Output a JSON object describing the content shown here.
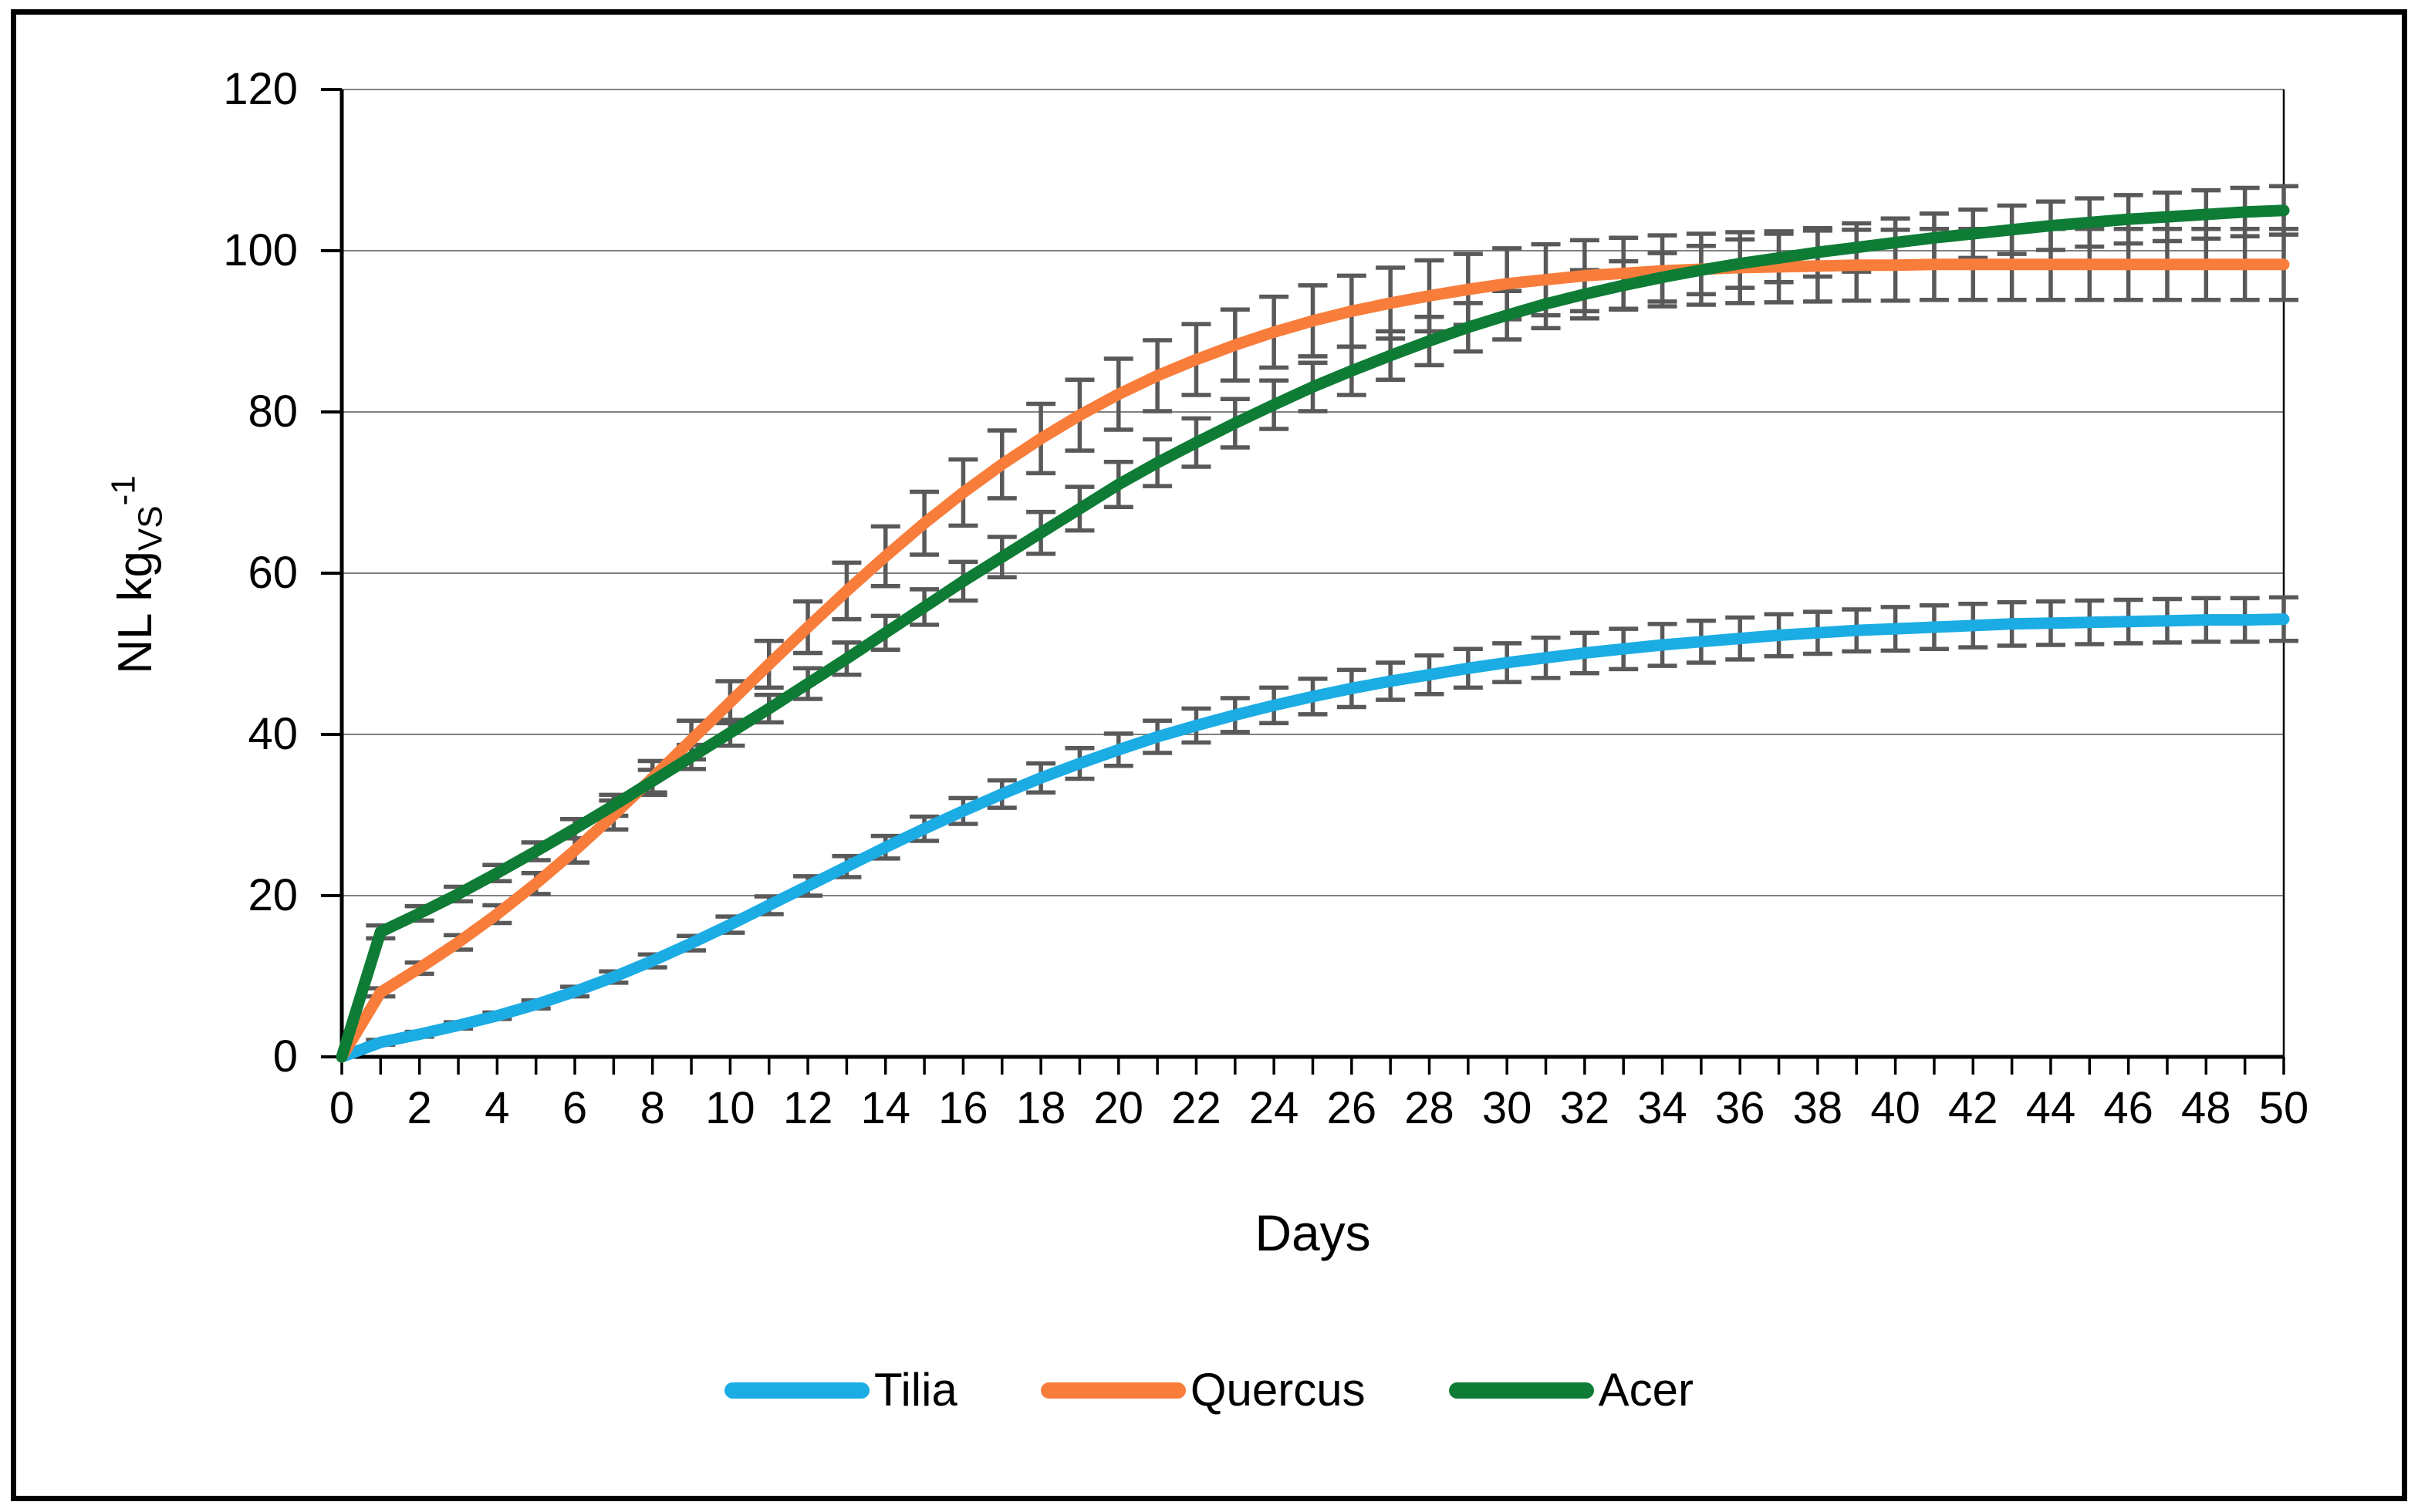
{
  "figure": {
    "background_color": "#ffffff",
    "frame_color": "#000000",
    "gridline_color": "#808080",
    "axis_color": "#000000"
  },
  "chart_data": {
    "type": "line",
    "title": "",
    "xlabel": "Days",
    "ylabel": "NL kgVS-1",
    "ylabel_parts": {
      "main": "NL kg",
      "subscript": "VS",
      "superscript": "-1"
    },
    "xlim": [
      0,
      50
    ],
    "ylim": [
      0,
      120
    ],
    "x_ticks": [
      0,
      2,
      4,
      6,
      8,
      10,
      12,
      14,
      16,
      18,
      20,
      22,
      24,
      26,
      28,
      30,
      32,
      34,
      36,
      38,
      40,
      42,
      44,
      46,
      48,
      50
    ],
    "y_ticks": [
      0,
      20,
      40,
      60,
      80,
      100,
      120
    ],
    "grid": "horizontal",
    "legend_position": "bottom",
    "error_bar_color": "#595959",
    "x": [
      0,
      1,
      2,
      3,
      4,
      5,
      6,
      7,
      8,
      9,
      10,
      11,
      12,
      13,
      14,
      15,
      16,
      17,
      18,
      19,
      20,
      21,
      22,
      23,
      24,
      25,
      26,
      27,
      28,
      29,
      30,
      31,
      32,
      33,
      34,
      35,
      36,
      37,
      38,
      39,
      40,
      41,
      42,
      43,
      44,
      45,
      46,
      47,
      48,
      49,
      50
    ],
    "series": [
      {
        "name": "Tilia",
        "color": "#1BACE4",
        "values": [
          0,
          1.8,
          2.8,
          3.9,
          5.1,
          6.5,
          8.1,
          9.9,
          11.9,
          14.1,
          16.4,
          18.8,
          21.2,
          23.6,
          26.0,
          28.3,
          30.5,
          32.6,
          34.6,
          36.4,
          38.1,
          39.7,
          41.1,
          42.4,
          43.6,
          44.7,
          45.7,
          46.6,
          47.4,
          48.2,
          48.9,
          49.5,
          50.1,
          50.6,
          51.1,
          51.5,
          51.9,
          52.3,
          52.6,
          52.9,
          53.1,
          53.3,
          53.5,
          53.7,
          53.8,
          53.9,
          54.0,
          54.1,
          54.2,
          54.2,
          54.3
        ],
        "errors": [
          0,
          0.3,
          0.3,
          0.4,
          0.4,
          0.5,
          0.6,
          0.7,
          0.8,
          0.9,
          1.0,
          1.1,
          1.2,
          1.3,
          1.4,
          1.5,
          1.6,
          1.7,
          1.8,
          1.9,
          2.0,
          2.0,
          2.1,
          2.1,
          2.2,
          2.2,
          2.3,
          2.3,
          2.4,
          2.4,
          2.4,
          2.5,
          2.5,
          2.5,
          2.6,
          2.6,
          2.6,
          2.6,
          2.6,
          2.6,
          2.7,
          2.7,
          2.7,
          2.7,
          2.7,
          2.7,
          2.7,
          2.7,
          2.7,
          2.7,
          2.7
        ]
      },
      {
        "name": "Quercus",
        "color": "#F87D3B",
        "values": [
          0,
          8.0,
          11.0,
          14.2,
          17.7,
          21.5,
          25.6,
          30.0,
          34.6,
          39.3,
          44.0,
          48.7,
          53.3,
          57.8,
          62.1,
          66.2,
          70.0,
          73.5,
          76.7,
          79.6,
          82.2,
          84.5,
          86.5,
          88.3,
          89.9,
          91.3,
          92.5,
          93.5,
          94.4,
          95.2,
          95.9,
          96.4,
          96.9,
          97.2,
          97.5,
          97.7,
          97.9,
          98.0,
          98.1,
          98.2,
          98.2,
          98.3,
          98.3,
          98.3,
          98.3,
          98.3,
          98.3,
          98.3,
          98.3,
          98.3,
          98.3
        ],
        "errors": [
          0,
          0.5,
          0.7,
          0.9,
          1.1,
          1.3,
          1.5,
          1.8,
          2.1,
          2.4,
          2.6,
          2.9,
          3.2,
          3.5,
          3.7,
          3.9,
          4.1,
          4.2,
          4.3,
          4.4,
          4.4,
          4.4,
          4.4,
          4.4,
          4.4,
          4.4,
          4.4,
          4.4,
          4.4,
          4.4,
          4.4,
          4.4,
          4.4,
          4.4,
          4.4,
          4.4,
          4.4,
          4.4,
          4.4,
          4.4,
          4.4,
          4.4,
          4.4,
          4.4,
          4.4,
          4.4,
          4.4,
          4.4,
          4.4,
          4.4,
          4.4
        ]
      },
      {
        "name": "Acer",
        "color": "#0E7C35",
        "values": [
          0,
          15.5,
          17.8,
          20.2,
          22.8,
          25.5,
          28.3,
          31.2,
          34.2,
          37.2,
          40.2,
          43.2,
          46.3,
          49.4,
          52.6,
          55.8,
          59.0,
          62.0,
          65.0,
          68.0,
          71.0,
          73.7,
          76.2,
          78.6,
          80.9,
          83.1,
          85.1,
          87.0,
          88.8,
          90.5,
          92.0,
          93.4,
          94.6,
          95.7,
          96.7,
          97.6,
          98.4,
          99.1,
          99.8,
          100.4,
          101.0,
          101.6,
          102.1,
          102.6,
          103.1,
          103.5,
          103.9,
          104.2,
          104.5,
          104.8,
          105.0
        ],
        "errors": [
          0,
          0.8,
          0.9,
          0.9,
          1.0,
          1.1,
          1.2,
          1.3,
          1.4,
          1.5,
          1.6,
          1.7,
          1.9,
          2.0,
          2.1,
          2.2,
          2.4,
          2.5,
          2.6,
          2.7,
          2.8,
          2.9,
          3.0,
          3.0,
          3.0,
          3.0,
          3.0,
          3.0,
          3.0,
          3.0,
          3.0,
          3.0,
          3.0,
          3.0,
          3.0,
          3.0,
          3.0,
          3.0,
          3.0,
          3.0,
          3.0,
          3.0,
          3.0,
          3.0,
          3.0,
          3.0,
          3.0,
          3.0,
          3.0,
          3.0,
          3.0
        ]
      }
    ]
  }
}
